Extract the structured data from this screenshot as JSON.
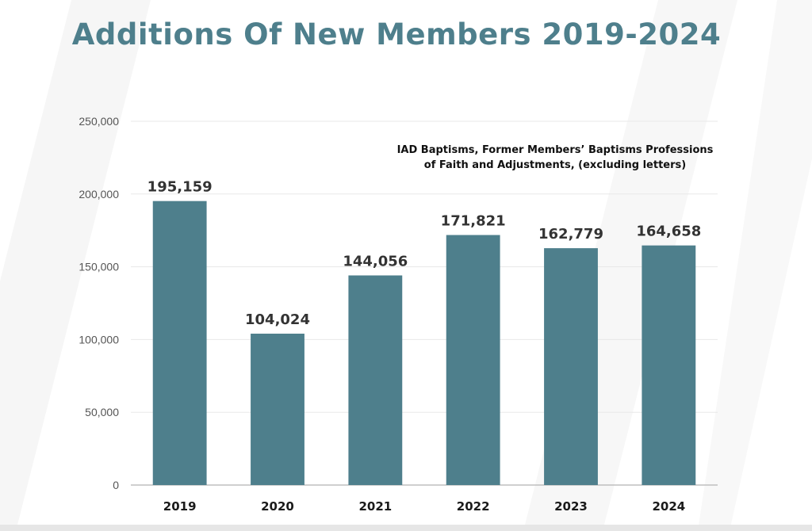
{
  "chart_data": {
    "type": "bar",
    "title": "Additions Of New Members 2019-2024",
    "annotation_lines": [
      "IAD Baptisms, Former Members’ Baptisms Professions",
      "of Faith and Adjustments, (excluding letters)"
    ],
    "categories": [
      "2019",
      "2020",
      "2021",
      "2022",
      "2023",
      "2024"
    ],
    "values": [
      195159,
      104024,
      144056,
      171821,
      162779,
      164658
    ],
    "data_labels": [
      "195,159",
      "104,024",
      "144,056",
      "171,821",
      "162,779",
      "164,658"
    ],
    "y_ticks": [
      "0",
      "50,000",
      "100,000",
      "150,000",
      "200,000",
      "250,000"
    ],
    "y_tick_values": [
      0,
      50000,
      100000,
      150000,
      200000,
      250000
    ],
    "ylim": [
      0,
      250000
    ],
    "grid": true,
    "bar_color": "#4e7f8c",
    "xlabel": "",
    "ylabel": ""
  },
  "colors": {
    "title": "#4e7f8c",
    "grid": "#e8e8e8",
    "axis": "#bfbfbf"
  }
}
